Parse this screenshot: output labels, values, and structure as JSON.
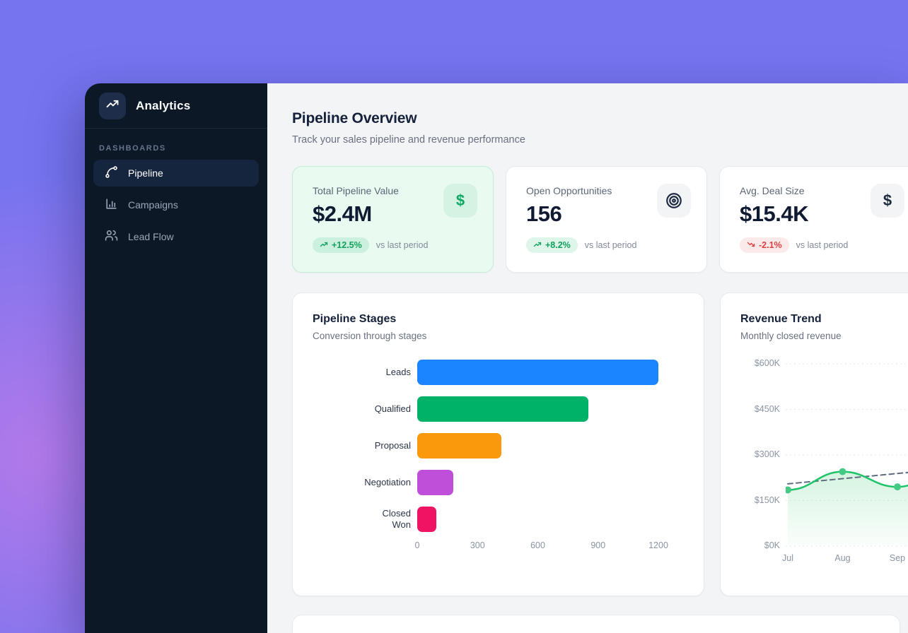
{
  "colors": {
    "background_purple": "#7674ef",
    "background_blob": "#b97ae9",
    "sidebar_bg": "#0d1827",
    "content_bg": "#f3f4f6",
    "accent_green": "#12b76a",
    "accent_red": "#e03e3e"
  },
  "sidebar": {
    "app_title": "Analytics",
    "logo_icon": "trending-up-icon",
    "section_label": "DASHBOARDS",
    "items": [
      {
        "label": "Pipeline",
        "icon": "route-icon",
        "active": true
      },
      {
        "label": "Campaigns",
        "icon": "bar-chart-icon",
        "active": false
      },
      {
        "label": "Lead Flow",
        "icon": "users-icon",
        "active": false
      }
    ]
  },
  "header": {
    "title": "Pipeline Overview",
    "subtitle": "Track your sales pipeline and revenue performance"
  },
  "stats": {
    "cards": [
      {
        "label": "Total Pipeline Value",
        "value": "$2.4M",
        "change": "+12.5%",
        "change_direction": "up",
        "compare_label": "vs last period",
        "icon": "dollar-icon",
        "highlighted": true
      },
      {
        "label": "Open Opportunities",
        "value": "156",
        "change": "+8.2%",
        "change_direction": "up",
        "compare_label": "vs last period",
        "icon": "target-icon",
        "highlighted": false
      },
      {
        "label": "Avg. Deal Size",
        "value": "$15.4K",
        "change": "-2.1%",
        "change_direction": "down",
        "compare_label": "vs last period",
        "icon": "dollar-icon",
        "highlighted": false
      }
    ]
  },
  "chart_data": [
    {
      "type": "bar",
      "orientation": "horizontal",
      "title": "Pipeline Stages",
      "subtitle": "Conversion through stages",
      "categories": [
        "Leads",
        "Qualified",
        "Proposal",
        "Negotiation",
        "Closed Won"
      ],
      "values": [
        1200,
        850,
        420,
        180,
        95
      ],
      "colors": [
        "#1b85ff",
        "#00b168",
        "#f9990b",
        "#bf4fd9",
        "#ee1463"
      ],
      "xlim": [
        0,
        1250
      ],
      "x_ticks": [
        0,
        300,
        600,
        900,
        1200
      ],
      "grid": false
    },
    {
      "type": "line",
      "title": "Revenue Trend",
      "subtitle": "Monthly closed revenue",
      "x": [
        "Jul",
        "Aug",
        "Sep"
      ],
      "series": [
        {
          "name": "closed-revenue",
          "values": [
            185,
            245,
            195
          ],
          "color": "#1ec36a",
          "marker_color": "#45ca83",
          "style": "solid-with-markers",
          "area_fill": true
        },
        {
          "name": "trend",
          "values": [
            205,
            222,
            239
          ],
          "color": "#5f6c80",
          "style": "dashed"
        }
      ],
      "ylim": [
        0,
        600
      ],
      "y_ticks": [
        "$600K",
        "$450K",
        "$300K",
        "$150K",
        "$0K"
      ],
      "grid": true,
      "grid_style": "dashed",
      "clipped_right": true
    }
  ]
}
